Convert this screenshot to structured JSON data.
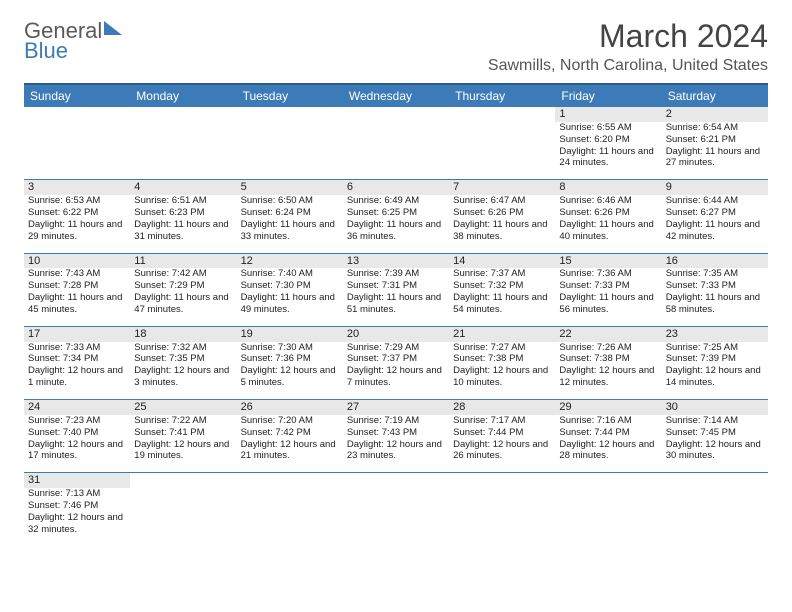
{
  "logo": {
    "part1": "General",
    "part2": "Blue"
  },
  "title": "March 2024",
  "location": "Sawmills, North Carolina, United States",
  "day_headers": [
    "Sunday",
    "Monday",
    "Tuesday",
    "Wednesday",
    "Thursday",
    "Friday",
    "Saturday"
  ],
  "header_bg": "#3d7bb8",
  "header_border": "#2a5a8a",
  "daynum_bg": "#e8e8e8",
  "weeks": [
    [
      null,
      null,
      null,
      null,
      null,
      {
        "n": "1",
        "sr": "6:55 AM",
        "ss": "6:20 PM",
        "dl": "11 hours and 24 minutes."
      },
      {
        "n": "2",
        "sr": "6:54 AM",
        "ss": "6:21 PM",
        "dl": "11 hours and 27 minutes."
      }
    ],
    [
      {
        "n": "3",
        "sr": "6:53 AM",
        "ss": "6:22 PM",
        "dl": "11 hours and 29 minutes."
      },
      {
        "n": "4",
        "sr": "6:51 AM",
        "ss": "6:23 PM",
        "dl": "11 hours and 31 minutes."
      },
      {
        "n": "5",
        "sr": "6:50 AM",
        "ss": "6:24 PM",
        "dl": "11 hours and 33 minutes."
      },
      {
        "n": "6",
        "sr": "6:49 AM",
        "ss": "6:25 PM",
        "dl": "11 hours and 36 minutes."
      },
      {
        "n": "7",
        "sr": "6:47 AM",
        "ss": "6:26 PM",
        "dl": "11 hours and 38 minutes."
      },
      {
        "n": "8",
        "sr": "6:46 AM",
        "ss": "6:26 PM",
        "dl": "11 hours and 40 minutes."
      },
      {
        "n": "9",
        "sr": "6:44 AM",
        "ss": "6:27 PM",
        "dl": "11 hours and 42 minutes."
      }
    ],
    [
      {
        "n": "10",
        "sr": "7:43 AM",
        "ss": "7:28 PM",
        "dl": "11 hours and 45 minutes."
      },
      {
        "n": "11",
        "sr": "7:42 AM",
        "ss": "7:29 PM",
        "dl": "11 hours and 47 minutes."
      },
      {
        "n": "12",
        "sr": "7:40 AM",
        "ss": "7:30 PM",
        "dl": "11 hours and 49 minutes."
      },
      {
        "n": "13",
        "sr": "7:39 AM",
        "ss": "7:31 PM",
        "dl": "11 hours and 51 minutes."
      },
      {
        "n": "14",
        "sr": "7:37 AM",
        "ss": "7:32 PM",
        "dl": "11 hours and 54 minutes."
      },
      {
        "n": "15",
        "sr": "7:36 AM",
        "ss": "7:33 PM",
        "dl": "11 hours and 56 minutes."
      },
      {
        "n": "16",
        "sr": "7:35 AM",
        "ss": "7:33 PM",
        "dl": "11 hours and 58 minutes."
      }
    ],
    [
      {
        "n": "17",
        "sr": "7:33 AM",
        "ss": "7:34 PM",
        "dl": "12 hours and 1 minute."
      },
      {
        "n": "18",
        "sr": "7:32 AM",
        "ss": "7:35 PM",
        "dl": "12 hours and 3 minutes."
      },
      {
        "n": "19",
        "sr": "7:30 AM",
        "ss": "7:36 PM",
        "dl": "12 hours and 5 minutes."
      },
      {
        "n": "20",
        "sr": "7:29 AM",
        "ss": "7:37 PM",
        "dl": "12 hours and 7 minutes."
      },
      {
        "n": "21",
        "sr": "7:27 AM",
        "ss": "7:38 PM",
        "dl": "12 hours and 10 minutes."
      },
      {
        "n": "22",
        "sr": "7:26 AM",
        "ss": "7:38 PM",
        "dl": "12 hours and 12 minutes."
      },
      {
        "n": "23",
        "sr": "7:25 AM",
        "ss": "7:39 PM",
        "dl": "12 hours and 14 minutes."
      }
    ],
    [
      {
        "n": "24",
        "sr": "7:23 AM",
        "ss": "7:40 PM",
        "dl": "12 hours and 17 minutes."
      },
      {
        "n": "25",
        "sr": "7:22 AM",
        "ss": "7:41 PM",
        "dl": "12 hours and 19 minutes."
      },
      {
        "n": "26",
        "sr": "7:20 AM",
        "ss": "7:42 PM",
        "dl": "12 hours and 21 minutes."
      },
      {
        "n": "27",
        "sr": "7:19 AM",
        "ss": "7:43 PM",
        "dl": "12 hours and 23 minutes."
      },
      {
        "n": "28",
        "sr": "7:17 AM",
        "ss": "7:44 PM",
        "dl": "12 hours and 26 minutes."
      },
      {
        "n": "29",
        "sr": "7:16 AM",
        "ss": "7:44 PM",
        "dl": "12 hours and 28 minutes."
      },
      {
        "n": "30",
        "sr": "7:14 AM",
        "ss": "7:45 PM",
        "dl": "12 hours and 30 minutes."
      }
    ],
    [
      {
        "n": "31",
        "sr": "7:13 AM",
        "ss": "7:46 PM",
        "dl": "12 hours and 32 minutes."
      },
      null,
      null,
      null,
      null,
      null,
      null
    ]
  ],
  "labels": {
    "sunrise": "Sunrise: ",
    "sunset": "Sunset: ",
    "daylight": "Daylight: "
  }
}
